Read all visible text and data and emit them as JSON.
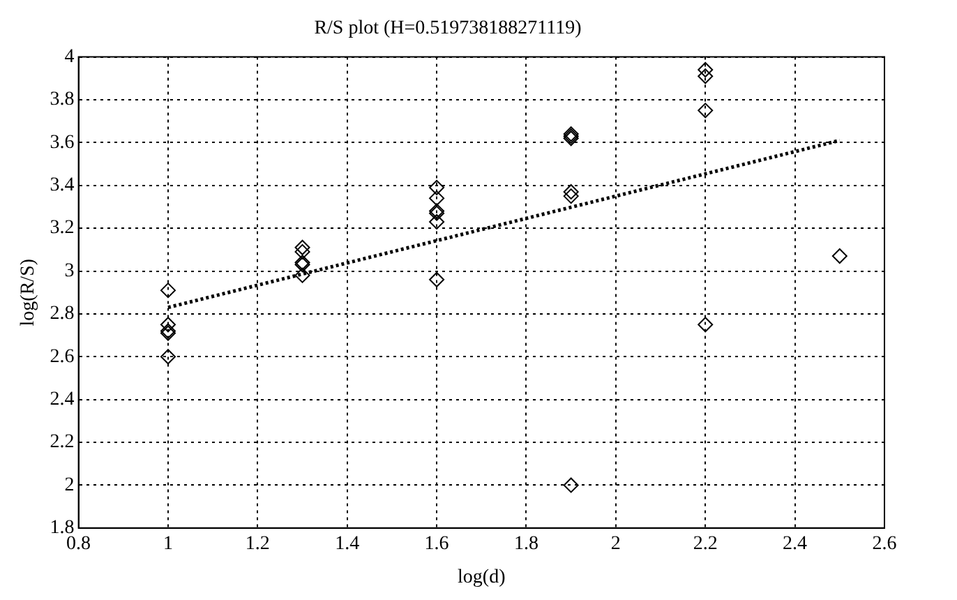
{
  "chart_data": {
    "type": "scatter",
    "title": "R/S plot (H=0.519738188271119)",
    "xlabel": "log(d)",
    "ylabel": "log(R/S)",
    "series": [
      {
        "type": "scatter",
        "color": "#000000",
        "marker": "diamond",
        "x": [
          1,
          1,
          1,
          1,
          1,
          1.3,
          1.3,
          1.3,
          1.3,
          1.3,
          1.6,
          1.6,
          1.6,
          1.6,
          1.6,
          1.6,
          1.9,
          1.9,
          1.9,
          1.9,
          1.9,
          1.9,
          2.2,
          2.2,
          2.2,
          2.2,
          2.5
        ],
        "values": [
          2.91,
          2.75,
          2.72,
          2.71,
          2.6,
          3.11,
          3.09,
          3.04,
          3.03,
          2.98,
          3.39,
          3.34,
          3.28,
          3.27,
          3.23,
          2.96,
          3.64,
          3.63,
          3.62,
          3.37,
          3.35,
          2.0,
          3.94,
          3.91,
          3.75,
          2.75,
          3.07
        ]
      },
      {
        "type": "line",
        "color": "#000000",
        "marker": "none",
        "line_style": "dotted",
        "x": [
          1,
          2.5
        ],
        "values": [
          2.83,
          3.61
        ]
      }
    ],
    "xlim": [
      0.8,
      2.6
    ],
    "xticks": [
      0.8,
      1,
      1.2,
      1.4,
      1.6,
      1.8,
      2,
      2.2,
      2.4,
      2.6
    ],
    "ylim": [
      1.8,
      4
    ],
    "yticks": [
      1.8,
      2,
      2.2,
      2.4,
      2.6,
      2.8,
      3,
      3.2,
      3.4,
      3.6,
      3.8,
      4
    ],
    "grid": true,
    "legend": false
  }
}
